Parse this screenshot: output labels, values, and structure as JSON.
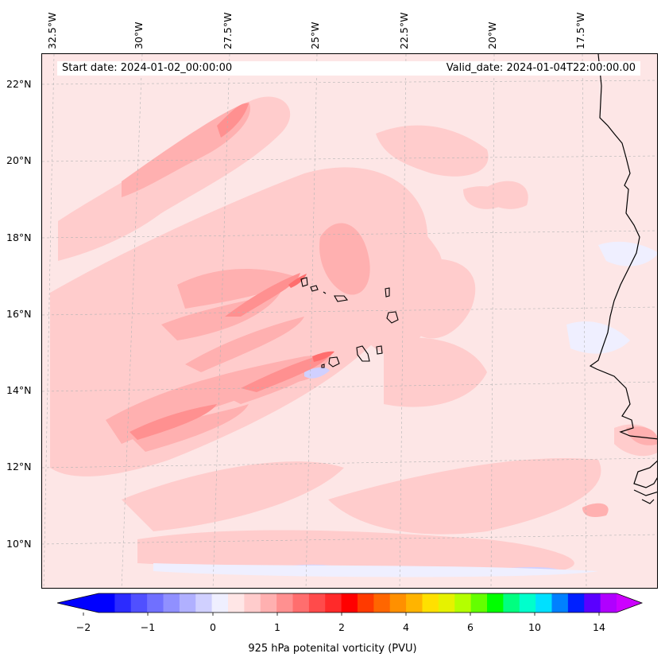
{
  "map": {
    "start_date": "Start date: 2024-01-02_00:00:00",
    "valid_date": "Valid_date: 2024-01-04T22:00:00.00",
    "lon_labels": [
      "32.5°W",
      "30°W",
      "27.5°W",
      "25°W",
      "22.5°W",
      "20°W",
      "17.5°W"
    ],
    "lat_labels": [
      "22°N",
      "20°N",
      "18°N",
      "16°N",
      "14°N",
      "12°N",
      "10°N"
    ]
  },
  "colorbar": {
    "label": "925 hPa potenital vorticity (PVU)",
    "ticks": [
      "−2",
      "−1",
      "0",
      "1",
      "2",
      "4",
      "6",
      "10",
      "14"
    ],
    "colors": [
      "#0000ff",
      "#2b2bff",
      "#5050ff",
      "#7070ff",
      "#9090ff",
      "#b0b0ff",
      "#d0d0ff",
      "#efefff",
      "#ffe6e6",
      "#ffcccc",
      "#ffb0b0",
      "#ff9090",
      "#ff6e6e",
      "#ff4b4b",
      "#ff2a2a",
      "#ff0000",
      "#ff3a00",
      "#ff6600",
      "#ff9000",
      "#ffb400",
      "#ffe000",
      "#e6f200",
      "#b4ff00",
      "#64ff00",
      "#00ff00",
      "#00ff80",
      "#00ffcc",
      "#00e0ff",
      "#0080ff",
      "#0020ff",
      "#5a00ff",
      "#b000ff"
    ],
    "extend_low_color": "#0000ff",
    "extend_high_color": "#cc00ff"
  }
}
